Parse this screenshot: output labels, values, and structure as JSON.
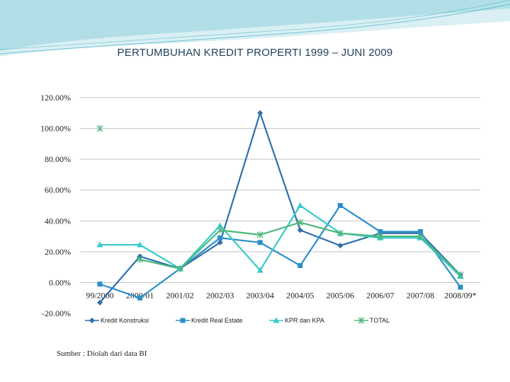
{
  "slide": {
    "source_note": "Sumber : Diolah dari data BI"
  },
  "colors": {
    "background_wave": "#2aa7bf",
    "title": "#1f3f5a",
    "gridline": "#c0c0c0"
  },
  "chart_data": {
    "type": "line",
    "title": "PERTUMBUHAN KREDIT PROPERTI 1999 – JUNI 2009",
    "categories": [
      "99/2000",
      "2000/01",
      "2001/02",
      "2002/03",
      "2003/04",
      "2004/05",
      "2005/06",
      "2006/07",
      "2007/08",
      "2008/09*"
    ],
    "y_ticks": [
      "120.00%",
      "100.00%",
      "80.00%",
      "60.00%",
      "40.00%",
      "20.00%",
      "0.00%",
      "-20.00%"
    ],
    "ylim": [
      -20,
      120
    ],
    "y_unit": "%",
    "grid": true,
    "legend_position": "bottom",
    "series": [
      {
        "name": "Kredit Konstruksi",
        "color": "#2e6fac",
        "marker": "diamond",
        "values": [
          -13,
          17,
          9,
          26,
          110,
          34,
          24,
          32,
          32,
          5
        ]
      },
      {
        "name": "Kredit Real Estate",
        "color": "#2b8fc9",
        "marker": "square",
        "values": [
          -1,
          -10,
          9,
          29,
          26,
          11,
          50,
          33,
          33,
          -3
        ]
      },
      {
        "name": "KPR dan KPA",
        "color": "#36c9cc",
        "marker": "triangle",
        "values": [
          24.5,
          24.5,
          9,
          37,
          8,
          50,
          32,
          29,
          29,
          4
        ]
      },
      {
        "name": "TOTAL",
        "color": "#4cb87a",
        "marker": "x",
        "values": [
          100,
          15,
          9,
          34,
          31,
          39,
          32,
          30,
          30,
          5
        ]
      }
    ]
  }
}
